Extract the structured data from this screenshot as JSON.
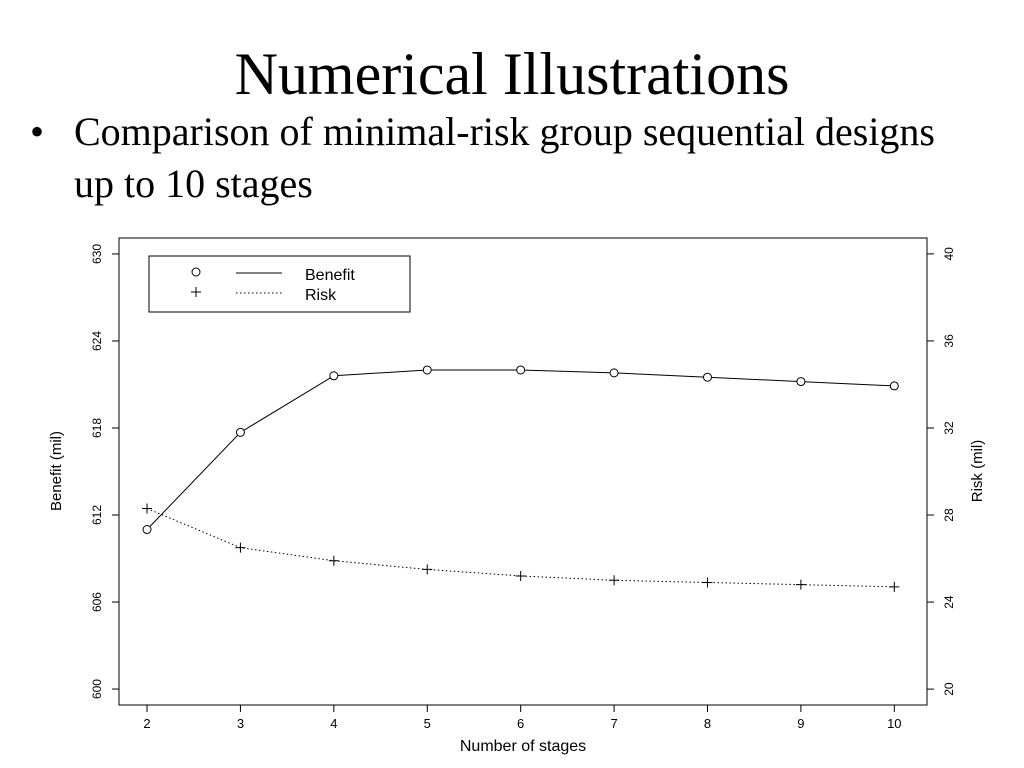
{
  "slide": {
    "title": "Numerical Illustrations",
    "bullet": "Comparison of minimal-risk group sequential designs up to 10 stages"
  },
  "chart_data": {
    "type": "line",
    "x": [
      2,
      3,
      4,
      5,
      6,
      7,
      8,
      9,
      10
    ],
    "xlabel": "Number of stages",
    "x_ticks": [
      2,
      3,
      4,
      5,
      6,
      7,
      8,
      9,
      10
    ],
    "xlim": [
      1.7,
      10.35
    ],
    "ylabel_left": "Benefit (mil)",
    "ylim_left": [
      598.9,
      631.1
    ],
    "y_ticks_left": [
      600,
      606,
      612,
      618,
      624,
      630
    ],
    "ylabel_right": "Risk (mil)",
    "ylim_right": [
      19.27,
      40.73
    ],
    "y_ticks_right": [
      20,
      24,
      28,
      32,
      36,
      40
    ],
    "grid": false,
    "legend_position": "top-left",
    "series": [
      {
        "name": "Benefit",
        "axis": "left",
        "marker": "circle",
        "line_style": "solid",
        "values": [
          611.0,
          617.7,
          621.6,
          622.0,
          622.0,
          621.8,
          621.5,
          621.2,
          620.9
        ]
      },
      {
        "name": "Risk",
        "axis": "right",
        "marker": "plus",
        "line_style": "dotted",
        "values": [
          28.3,
          26.5,
          25.9,
          25.5,
          25.2,
          25.0,
          24.9,
          24.8,
          24.7
        ]
      }
    ]
  }
}
